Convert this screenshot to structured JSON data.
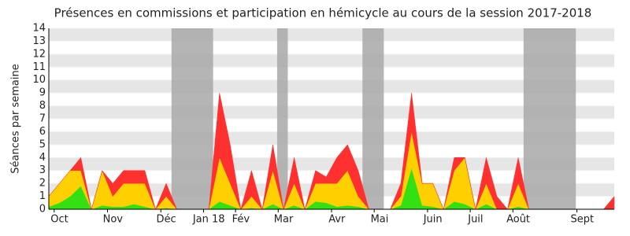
{
  "chart_data": {
    "type": "stacked-area",
    "title": "Présences en commissions et participation en hémicycle au cours de la session 2017-2018",
    "y_label": "Séances par semaine",
    "categories": [
      null,
      "Oct",
      null,
      null,
      null,
      null,
      "Nov",
      null,
      null,
      null,
      null,
      "Déc",
      null,
      null,
      null,
      "Jan 18",
      null,
      null,
      "Fév",
      null,
      null,
      null,
      "Mar",
      null,
      null,
      null,
      null,
      "Avr",
      null,
      null,
      null,
      "Mai",
      null,
      null,
      null,
      null,
      "Juin",
      null,
      null,
      null,
      "Juil",
      null,
      null,
      null,
      "Août",
      null,
      null,
      null,
      null,
      null,
      "Sept",
      null,
      null,
      null
    ],
    "series": [
      {
        "color": "#33e011",
        "values": [
          0.2,
          0.5,
          1,
          1.8,
          0,
          0.3,
          0.2,
          0.2,
          0.4,
          0.2,
          0,
          0.1,
          0,
          0,
          0,
          0,
          0.6,
          0.3,
          0,
          0.1,
          0,
          0.4,
          0,
          0.3,
          0,
          0.6,
          0.5,
          0.2,
          0.3,
          0.2,
          0,
          0,
          0,
          0.3,
          3.2,
          0.3,
          0.2,
          0,
          0.6,
          0.4,
          0,
          0.4,
          0,
          0,
          0.2,
          0,
          0,
          0,
          0,
          0,
          0,
          0,
          0,
          0
        ]
      },
      {
        "color": "#ffd000",
        "values": [
          0.8,
          1.5,
          2,
          1.2,
          0,
          2.7,
          0.8,
          1.8,
          1.6,
          1.8,
          0,
          0.9,
          0,
          0,
          0,
          0,
          3.4,
          1.7,
          0,
          0.9,
          0,
          2.6,
          0,
          1.7,
          0,
          1.4,
          1.5,
          1.8,
          2.7,
          0.8,
          0,
          0,
          0,
          0.7,
          2.8,
          1.7,
          1.8,
          0,
          2.4,
          3.6,
          0,
          1.6,
          0,
          0,
          1.8,
          0,
          0,
          0,
          0,
          0,
          0,
          0,
          0,
          0
        ]
      },
      {
        "color": "#ff3030",
        "values": [
          0,
          0,
          0,
          1,
          0,
          0,
          1,
          1,
          1,
          1,
          0,
          1,
          0,
          0,
          0,
          0,
          5,
          3,
          0,
          2,
          0,
          2,
          0,
          2,
          0,
          1,
          0.5,
          2,
          2,
          2,
          0,
          0,
          0,
          1,
          3,
          0,
          0,
          0,
          1,
          0,
          0,
          2,
          1,
          0,
          2,
          0,
          0,
          0,
          0,
          0,
          0,
          0,
          0,
          1
        ]
      }
    ],
    "highlight_ranges": [
      [
        11.5,
        15.4
      ],
      [
        21.4,
        22.4
      ],
      [
        29.4,
        31.4
      ],
      [
        44.5,
        49.4
      ]
    ],
    "highlight_color": "#a8a8a8",
    "ylim": [
      0,
      14
    ],
    "yticks": [
      0,
      1,
      2,
      3,
      4,
      5,
      6,
      7,
      8,
      9,
      10,
      11,
      12,
      13,
      14
    ],
    "grid": true
  }
}
